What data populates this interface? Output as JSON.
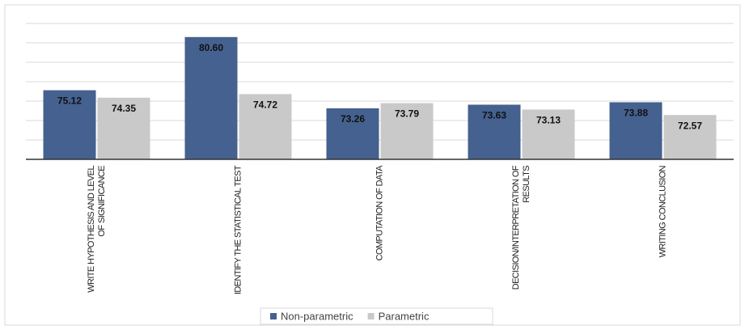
{
  "chart_data": {
    "type": "bar",
    "categories": [
      "WRITE HYPOTHESIS AND LEVEL OF SIGNIFICANCE",
      "IDENTIFY THE STATISTICAL TEST",
      "COMPUTATION OF DATA",
      "DECISION/INTERPRETATION OF RESULTS",
      "WRITING CONCLUSION"
    ],
    "series": [
      {
        "name": "Non-parametric",
        "color": "#44618f",
        "values": [
          75.12,
          80.6,
          73.26,
          73.63,
          73.88
        ],
        "value_labels": [
          "75.12",
          "80.60",
          "73.26",
          "73.63",
          "73.88"
        ]
      },
      {
        "name": "Parametric",
        "color": "#c9c9c9",
        "values": [
          74.35,
          74.72,
          73.79,
          73.13,
          72.57
        ],
        "value_labels": [
          "74.35",
          "74.72",
          "73.79",
          "73.13",
          "72.57"
        ]
      }
    ],
    "ylim": [
      68,
      82
    ],
    "yticks": [
      68,
      70,
      72,
      74,
      76,
      78,
      80,
      82
    ],
    "grid": true,
    "legend": "bottom"
  }
}
